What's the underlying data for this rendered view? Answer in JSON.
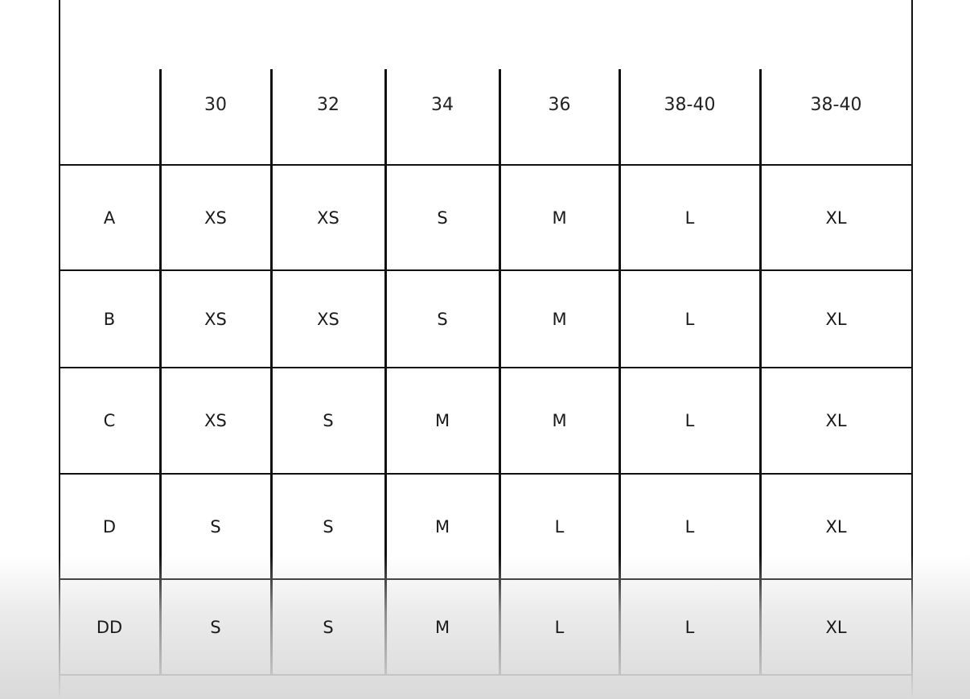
{
  "size_chart": {
    "columns": [
      "",
      "30",
      "32",
      "34",
      "36",
      "38-40",
      "38-40"
    ],
    "rows": [
      {
        "cup": "A",
        "sizes": [
          "XS",
          "XS",
          "S",
          "M",
          "L",
          "XL"
        ]
      },
      {
        "cup": "B",
        "sizes": [
          "XS",
          "XS",
          "S",
          "M",
          "L",
          "XL"
        ]
      },
      {
        "cup": "C",
        "sizes": [
          "XS",
          "S",
          "M",
          "M",
          "L",
          "XL"
        ]
      },
      {
        "cup": "D",
        "sizes": [
          "S",
          "S",
          "M",
          "L",
          "L",
          "XL"
        ]
      },
      {
        "cup": "DD",
        "sizes": [
          "S",
          "S",
          "M",
          "L",
          "L",
          "XL"
        ]
      }
    ]
  }
}
